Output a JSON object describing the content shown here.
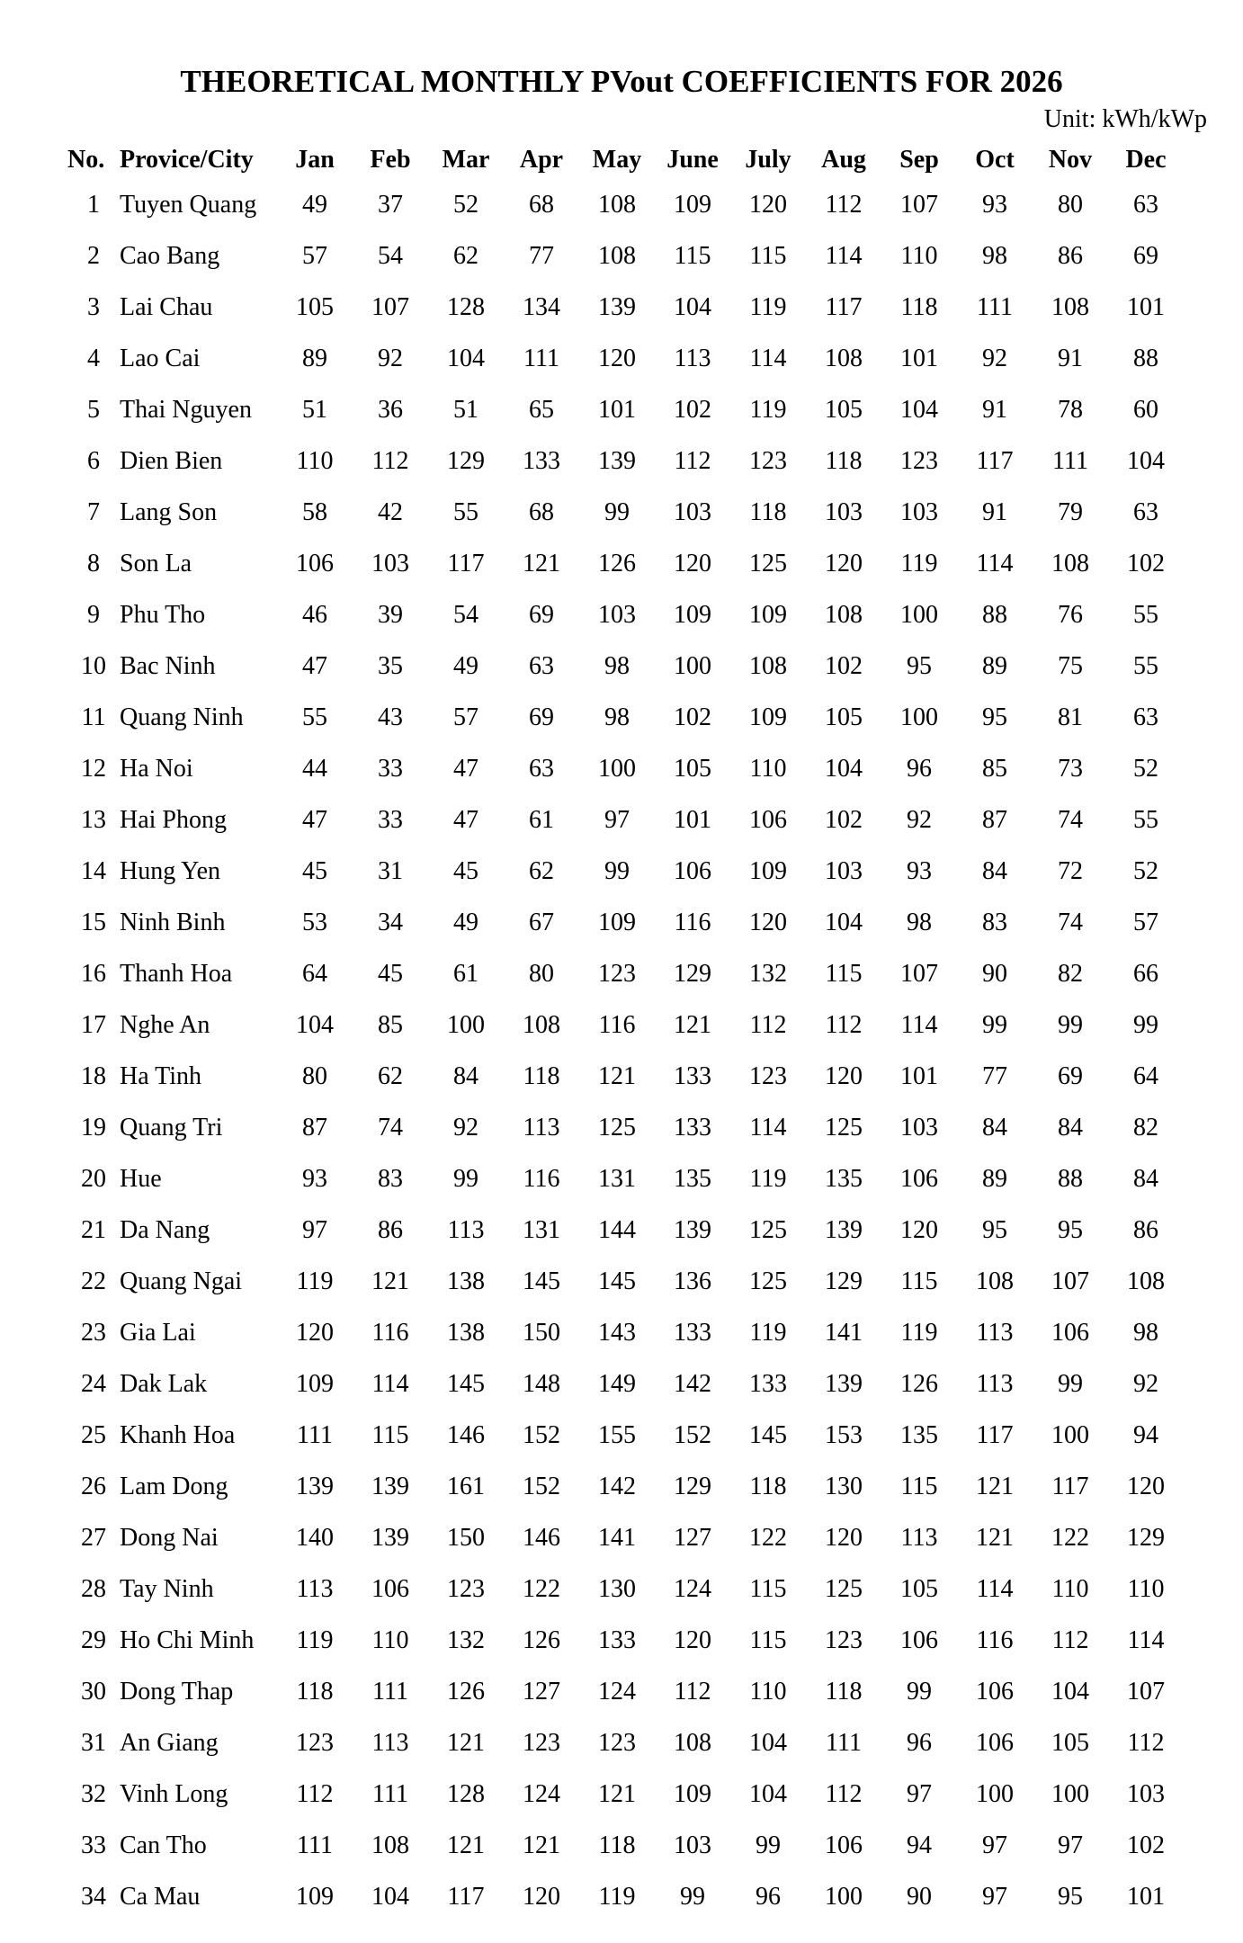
{
  "title": "THEORETICAL MONTHLY PVout COEFFICIENTS FOR 2026",
  "unit_label": "Unit: kWh/kWp",
  "table": {
    "columns": [
      "No.",
      "Provice/City",
      "Jan",
      "Feb",
      "Mar",
      "Apr",
      "May",
      "June",
      "July",
      "Aug",
      "Sep",
      "Oct",
      "Nov",
      "Dec"
    ],
    "rows": [
      {
        "no": 1,
        "name": "Tuyen Quang",
        "values": [
          49,
          37,
          52,
          68,
          108,
          109,
          120,
          112,
          107,
          93,
          80,
          63
        ]
      },
      {
        "no": 2,
        "name": "Cao Bang",
        "values": [
          57,
          54,
          62,
          77,
          108,
          115,
          115,
          114,
          110,
          98,
          86,
          69
        ]
      },
      {
        "no": 3,
        "name": "Lai Chau",
        "values": [
          105,
          107,
          128,
          134,
          139,
          104,
          119,
          117,
          118,
          111,
          108,
          101
        ]
      },
      {
        "no": 4,
        "name": "Lao Cai",
        "values": [
          89,
          92,
          104,
          111,
          120,
          113,
          114,
          108,
          101,
          92,
          91,
          88
        ]
      },
      {
        "no": 5,
        "name": "Thai Nguyen",
        "values": [
          51,
          36,
          51,
          65,
          101,
          102,
          119,
          105,
          104,
          91,
          78,
          60
        ]
      },
      {
        "no": 6,
        "name": "Dien Bien",
        "values": [
          110,
          112,
          129,
          133,
          139,
          112,
          123,
          118,
          123,
          117,
          111,
          104
        ]
      },
      {
        "no": 7,
        "name": "Lang Son",
        "values": [
          58,
          42,
          55,
          68,
          99,
          103,
          118,
          103,
          103,
          91,
          79,
          63
        ]
      },
      {
        "no": 8,
        "name": "Son La",
        "values": [
          106,
          103,
          117,
          121,
          126,
          120,
          125,
          120,
          119,
          114,
          108,
          102
        ]
      },
      {
        "no": 9,
        "name": "Phu Tho",
        "values": [
          46,
          39,
          54,
          69,
          103,
          109,
          109,
          108,
          100,
          88,
          76,
          55
        ]
      },
      {
        "no": 10,
        "name": "Bac Ninh",
        "values": [
          47,
          35,
          49,
          63,
          98,
          100,
          108,
          102,
          95,
          89,
          75,
          55
        ]
      },
      {
        "no": 11,
        "name": "Quang Ninh",
        "values": [
          55,
          43,
          57,
          69,
          98,
          102,
          109,
          105,
          100,
          95,
          81,
          63
        ]
      },
      {
        "no": 12,
        "name": "Ha Noi",
        "values": [
          44,
          33,
          47,
          63,
          100,
          105,
          110,
          104,
          96,
          85,
          73,
          52
        ]
      },
      {
        "no": 13,
        "name": "Hai Phong",
        "values": [
          47,
          33,
          47,
          61,
          97,
          101,
          106,
          102,
          92,
          87,
          74,
          55
        ]
      },
      {
        "no": 14,
        "name": "Hung Yen",
        "values": [
          45,
          31,
          45,
          62,
          99,
          106,
          109,
          103,
          93,
          84,
          72,
          52
        ]
      },
      {
        "no": 15,
        "name": "Ninh Binh",
        "values": [
          53,
          34,
          49,
          67,
          109,
          116,
          120,
          104,
          98,
          83,
          74,
          57
        ]
      },
      {
        "no": 16,
        "name": "Thanh Hoa",
        "values": [
          64,
          45,
          61,
          80,
          123,
          129,
          132,
          115,
          107,
          90,
          82,
          66
        ]
      },
      {
        "no": 17,
        "name": "Nghe An",
        "values": [
          104,
          85,
          100,
          108,
          116,
          121,
          112,
          112,
          114,
          99,
          99,
          99
        ]
      },
      {
        "no": 18,
        "name": "Ha Tinh",
        "values": [
          80,
          62,
          84,
          118,
          121,
          133,
          123,
          120,
          101,
          77,
          69,
          64
        ]
      },
      {
        "no": 19,
        "name": "Quang Tri",
        "values": [
          87,
          74,
          92,
          113,
          125,
          133,
          114,
          125,
          103,
          84,
          84,
          82
        ]
      },
      {
        "no": 20,
        "name": "Hue",
        "values": [
          93,
          83,
          99,
          116,
          131,
          135,
          119,
          135,
          106,
          89,
          88,
          84
        ]
      },
      {
        "no": 21,
        "name": "Da Nang",
        "values": [
          97,
          86,
          113,
          131,
          144,
          139,
          125,
          139,
          120,
          95,
          95,
          86
        ]
      },
      {
        "no": 22,
        "name": "Quang Ngai",
        "values": [
          119,
          121,
          138,
          145,
          145,
          136,
          125,
          129,
          115,
          108,
          107,
          108
        ]
      },
      {
        "no": 23,
        "name": "Gia Lai",
        "values": [
          120,
          116,
          138,
          150,
          143,
          133,
          119,
          141,
          119,
          113,
          106,
          98
        ]
      },
      {
        "no": 24,
        "name": "Dak Lak",
        "values": [
          109,
          114,
          145,
          148,
          149,
          142,
          133,
          139,
          126,
          113,
          99,
          92
        ]
      },
      {
        "no": 25,
        "name": "Khanh Hoa",
        "values": [
          111,
          115,
          146,
          152,
          155,
          152,
          145,
          153,
          135,
          117,
          100,
          94
        ]
      },
      {
        "no": 26,
        "name": "Lam Dong",
        "values": [
          139,
          139,
          161,
          152,
          142,
          129,
          118,
          130,
          115,
          121,
          117,
          120
        ]
      },
      {
        "no": 27,
        "name": "Dong Nai",
        "values": [
          140,
          139,
          150,
          146,
          141,
          127,
          122,
          120,
          113,
          121,
          122,
          129
        ]
      },
      {
        "no": 28,
        "name": "Tay Ninh",
        "values": [
          113,
          106,
          123,
          122,
          130,
          124,
          115,
          125,
          105,
          114,
          110,
          110
        ]
      },
      {
        "no": 29,
        "name": "Ho Chi Minh",
        "values": [
          119,
          110,
          132,
          126,
          133,
          120,
          115,
          123,
          106,
          116,
          112,
          114
        ]
      },
      {
        "no": 30,
        "name": "Dong Thap",
        "values": [
          118,
          111,
          126,
          127,
          124,
          112,
          110,
          118,
          99,
          106,
          104,
          107
        ]
      },
      {
        "no": 31,
        "name": "An Giang",
        "values": [
          123,
          113,
          121,
          123,
          123,
          108,
          104,
          111,
          96,
          106,
          105,
          112
        ]
      },
      {
        "no": 32,
        "name": "Vinh Long",
        "values": [
          112,
          111,
          128,
          124,
          121,
          109,
          104,
          112,
          97,
          100,
          100,
          103
        ]
      },
      {
        "no": 33,
        "name": "Can Tho",
        "values": [
          111,
          108,
          121,
          121,
          118,
          103,
          99,
          106,
          94,
          97,
          97,
          102
        ]
      },
      {
        "no": 34,
        "name": "Ca Mau",
        "values": [
          109,
          104,
          117,
          120,
          119,
          99,
          96,
          100,
          90,
          97,
          95,
          101
        ]
      }
    ]
  }
}
